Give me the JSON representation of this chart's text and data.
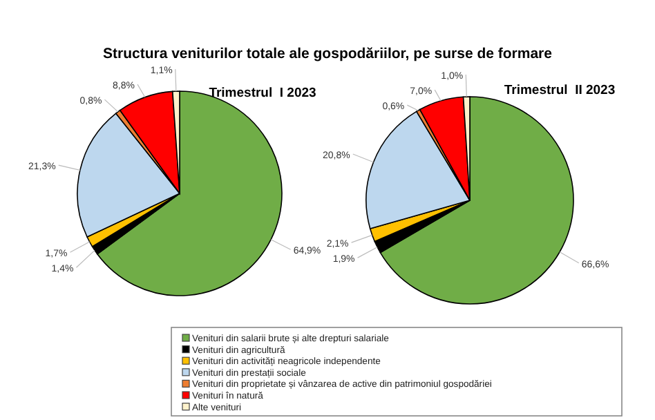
{
  "chart_data": [
    {
      "type": "pie",
      "title": "Structura veniturilor totale ale gospodăriilor, pe surse de formare",
      "subtitle": "Trimestrul  I 2023",
      "categories": [
        "Venituri din salarii brute și alte drepturi salariale",
        "Venituri din agricultură",
        "Venituri din activități neagricole independente",
        "Venituri din prestații sociale",
        "Venituri din proprietate și vânzarea de active din patrimoniul gospodăriei",
        "Venituri în natură",
        "Alte venituri"
      ],
      "values": [
        64.9,
        1.4,
        1.7,
        21.3,
        0.8,
        8.8,
        1.1
      ],
      "value_labels": [
        "64,9%",
        "1,4%",
        "1,7%",
        "21,3%",
        "0,8%",
        "8,8%",
        "1,1%"
      ],
      "colors": [
        "#70ad47",
        "#000000",
        "#ffc000",
        "#bdd7ee",
        "#ed7d31",
        "#ff0000",
        "#fff2cc"
      ],
      "legend": "bottom"
    },
    {
      "type": "pie",
      "subtitle": "Trimestrul  II 2023",
      "categories": [
        null,
        null,
        null,
        null,
        null,
        null,
        null
      ],
      "values": [
        66.6,
        1.9,
        2.1,
        20.8,
        0.6,
        7.0,
        1.0
      ],
      "value_labels": [
        "66,6%",
        "1,9%",
        "2,1%",
        "20,8%",
        "0,6%",
        "7,0%",
        "1,0%"
      ],
      "colors": [
        "#70ad47",
        "#000000",
        "#ffc000",
        "#bdd7ee",
        "#ed7d31",
        "#ff0000",
        "#fff2cc"
      ]
    }
  ]
}
